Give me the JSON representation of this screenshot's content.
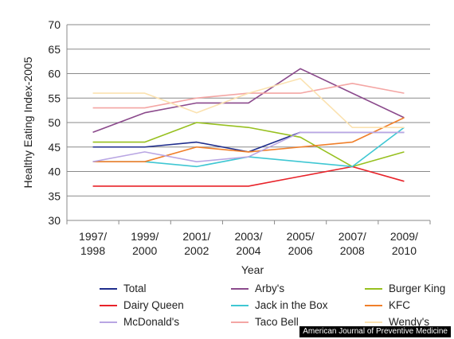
{
  "chart_data": {
    "type": "line",
    "title": "",
    "xlabel": "Year",
    "ylabel": "Healthy Eating Index-2005",
    "ylim": [
      30,
      70
    ],
    "yticks": [
      30,
      35,
      40,
      45,
      50,
      55,
      60,
      65,
      70
    ],
    "grid": "horizontal",
    "legend_position": "bottom",
    "categories": [
      [
        "1997/",
        "1998"
      ],
      [
        "1999/",
        "2000"
      ],
      [
        "2001/",
        "2002"
      ],
      [
        "2003/",
        "2004"
      ],
      [
        "2005/",
        "2006"
      ],
      [
        "2007/",
        "2008"
      ],
      [
        "2009/",
        "2010"
      ]
    ],
    "series": [
      {
        "name": "Total",
        "color": "#1f2d8c",
        "values": [
          45,
          45,
          46,
          44,
          48,
          48,
          48
        ]
      },
      {
        "name": "Arby's",
        "color": "#8b4a8c",
        "values": [
          48,
          52,
          54,
          54,
          61,
          56,
          51
        ]
      },
      {
        "name": "Burger King",
        "color": "#97c01f",
        "values": [
          46,
          46,
          50,
          49,
          47,
          41,
          44
        ]
      },
      {
        "name": "Dairy Queen",
        "color": "#e8232a",
        "values": [
          37,
          37,
          37,
          37,
          39,
          41,
          38
        ]
      },
      {
        "name": "Jack in the Box",
        "color": "#3fc7d3",
        "values": [
          42,
          42,
          41,
          43,
          42,
          41,
          49
        ]
      },
      {
        "name": "KFC",
        "color": "#f07f2a",
        "values": [
          42,
          42,
          45,
          44,
          45,
          46,
          51
        ]
      },
      {
        "name": "McDonald's",
        "color": "#b9a6e3",
        "values": [
          42,
          44,
          42,
          43,
          48,
          48,
          48
        ]
      },
      {
        "name": "Taco Bell",
        "color": "#f4a6a4",
        "values": [
          53,
          53,
          55,
          56,
          56,
          58,
          56
        ]
      },
      {
        "name": "Wendy's",
        "color": "#fbe2b0",
        "values": [
          56,
          56,
          52,
          56,
          59,
          49,
          49
        ]
      }
    ]
  },
  "credit": "American Journal of Preventive Medicine"
}
